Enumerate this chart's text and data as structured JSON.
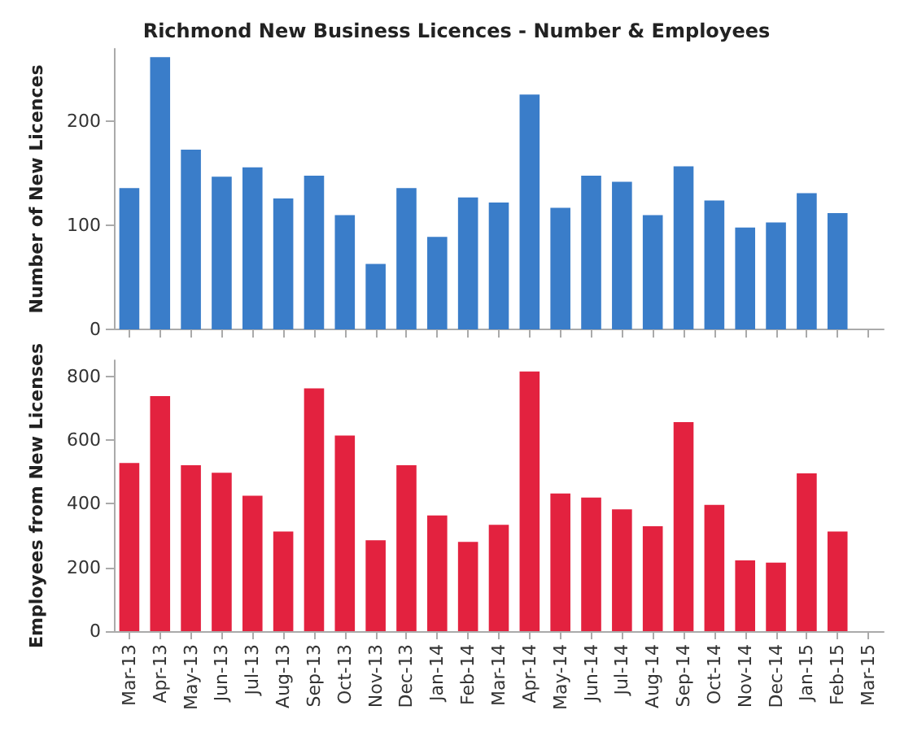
{
  "chart_data": [
    {
      "type": "bar",
      "title": "Richmond New Business Licences - Number & Employees",
      "ylabel": "Number of New Licences",
      "categories": [
        null,
        null,
        null,
        null,
        null,
        null,
        null,
        null,
        null,
        null,
        null,
        null,
        null,
        null,
        null,
        null,
        null,
        null,
        null,
        null,
        null,
        null,
        null,
        null,
        null
      ],
      "values": [
        136,
        262,
        173,
        147,
        156,
        126,
        148,
        110,
        63,
        136,
        89,
        127,
        122,
        226,
        117,
        148,
        142,
        110,
        157,
        124,
        98,
        103,
        131,
        112,
        null
      ],
      "color": "#3a7dc9",
      "ylim": [
        0,
        270
      ],
      "yticks": [
        0,
        100,
        200
      ],
      "tick_labels": "y",
      "grid": false
    },
    {
      "type": "bar",
      "ylabel": "Employees from New Licenses",
      "categories": [
        "Mar-13",
        "Apr-13",
        "May-13",
        "Jun-13",
        "Jul-13",
        "Aug-13",
        "Sep-13",
        "Oct-13",
        "Nov-13",
        "Dec-13",
        "Jan-14",
        "Feb-14",
        "Mar-14",
        "Apr-14",
        "May-14",
        "Jun-14",
        "Jul-14",
        "Aug-14",
        "Sep-14",
        "Oct-14",
        "Nov-14",
        "Dec-14",
        "Jan-15",
        "Feb-15",
        "Mar-15"
      ],
      "values": [
        528,
        738,
        521,
        497,
        425,
        313,
        762,
        614,
        285,
        521,
        363,
        280,
        334,
        815,
        432,
        419,
        382,
        329,
        656,
        396,
        222,
        215,
        495,
        313,
        null
      ],
      "color": "#e3223f",
      "ylim": [
        0,
        850
      ],
      "yticks": [
        0,
        200,
        400,
        600,
        800
      ],
      "grid": false
    }
  ]
}
